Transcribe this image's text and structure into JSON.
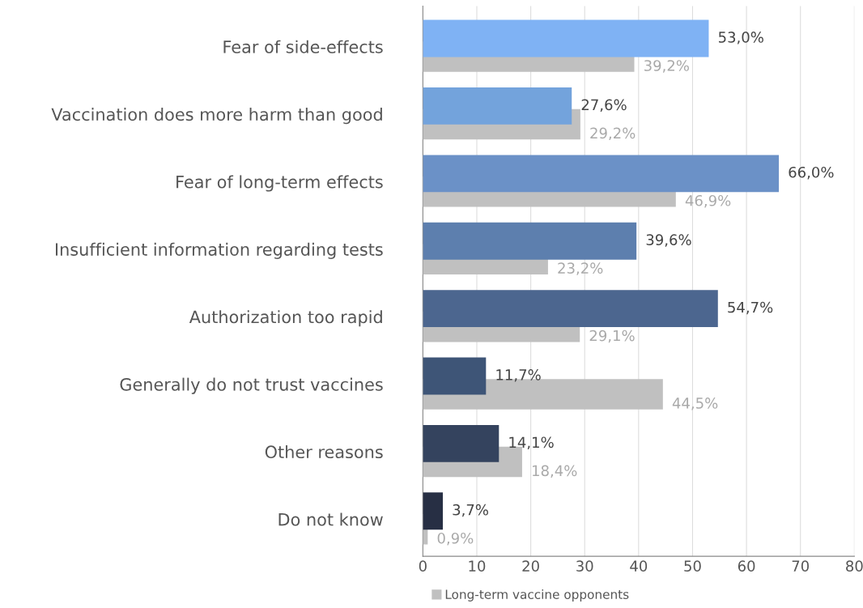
{
  "chart_data": {
    "type": "bar",
    "orientation": "horizontal",
    "categories": [
      "Fear of side-effects",
      "Vaccination does more harm than good",
      "Fear of long-term effects",
      "Insufficient information regarding tests",
      "Authorization too rapid",
      "Generally do not trust vaccines",
      "Other reasons",
      "Do not know"
    ],
    "series": [
      {
        "colors": [
          "#7fb2f4",
          "#73a3dc",
          "#6b91c7",
          "#5d7fae",
          "#4c668f",
          "#3e5577",
          "#34435e",
          "#272f44"
        ],
        "values": [
          53.0,
          27.6,
          66.0,
          39.6,
          54.7,
          11.7,
          14.1,
          3.7
        ],
        "value_labels": [
          "53,0%",
          "27,6%",
          "66,0%",
          "39,6%",
          "54,7%",
          "11,7%",
          "14,1%",
          "3,7%"
        ]
      },
      {
        "name": "Long-term vaccine opponents",
        "color": "#c0c0c0",
        "values": [
          39.2,
          29.2,
          46.9,
          23.2,
          29.1,
          44.5,
          18.4,
          0.9
        ],
        "value_labels": [
          "39,2%",
          "29,2%",
          "46,9%",
          "23,2%",
          "29,1%",
          "44,5%",
          "18,4%",
          "0,9%"
        ]
      }
    ],
    "xlim": [
      0,
      80
    ],
    "xticks": [
      0,
      10,
      20,
      30,
      40,
      50,
      60,
      70,
      80
    ],
    "grid": "x",
    "legend": "bottom"
  }
}
